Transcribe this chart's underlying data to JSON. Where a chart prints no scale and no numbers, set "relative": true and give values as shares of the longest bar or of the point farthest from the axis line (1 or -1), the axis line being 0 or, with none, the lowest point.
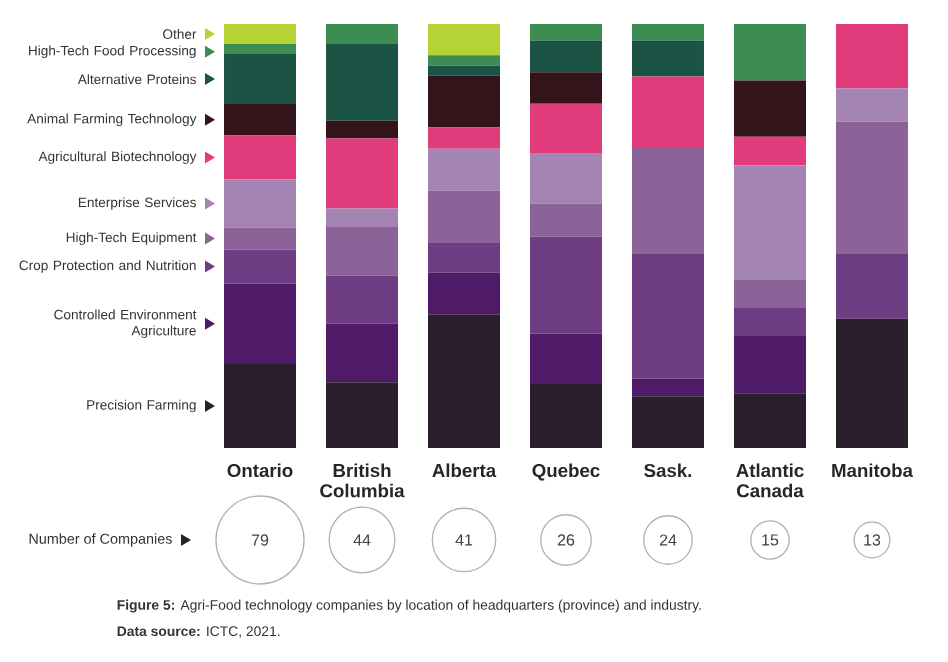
{
  "chart_data": [
    {
      "type": "bar",
      "stacked": true,
      "relative": true,
      "legend": "left",
      "categories": [
        "Ontario",
        "British Columbia",
        "Alberta",
        "Quebec",
        "Sask.",
        "Atlantic Canada",
        "Manitoba"
      ],
      "series": [
        {
          "name": "Precision Farming",
          "color": "#2b1f2e",
          "values": [
            0.198,
            0.155,
            0.314,
            0.151,
            0.122,
            0.129,
            0.305
          ]
        },
        {
          "name": "Controlled Environment Agriculture",
          "color": "#4f1a68",
          "values": [
            0.19,
            0.138,
            0.1,
            0.119,
            0.042,
            0.135,
            0
          ]
        },
        {
          "name": "Crop Protection and Nutrition",
          "color": "#6e3d83",
          "values": [
            0.08,
            0.113,
            0.071,
            0.228,
            0.295,
            0.066,
            0.154
          ]
        },
        {
          "name": "High-Tech Equipment",
          "color": "#8b6399",
          "values": [
            0.052,
            0.115,
            0.122,
            0.078,
            0.251,
            0.066,
            0.311
          ]
        },
        {
          "name": "Enterprise Services",
          "color": "#a384b2",
          "values": [
            0.113,
            0.044,
            0.099,
            0.118,
            0,
            0.27,
            0.078
          ]
        },
        {
          "name": "Agricultural Biotechnology",
          "color": "#e03c7c",
          "values": [
            0.104,
            0.165,
            0.05,
            0.118,
            0.166,
            0.068,
            0.152
          ]
        },
        {
          "name": "Animal Farming Technology",
          "color": "#33141a",
          "values": [
            0.074,
            0.042,
            0.122,
            0.074,
            0,
            0.133,
            0
          ]
        },
        {
          "name": "Alternative Proteins",
          "color": "#1b5444",
          "values": [
            0.118,
            0.181,
            0.024,
            0.075,
            0.085,
            0,
            0
          ]
        },
        {
          "name": "High-Tech Food Processing",
          "color": "#3d8c52",
          "values": [
            0.024,
            0.047,
            0.024,
            0.039,
            0.039,
            0.133,
            0
          ]
        },
        {
          "name": "Other",
          "color": "#b5d334",
          "values": [
            0.047,
            0,
            0.074,
            0,
            0,
            0,
            0
          ]
        }
      ],
      "annotations": [
        "**Figure 5:** Agri-Food technology companies by location of headquarters (province) and industry.",
        "**Data source:** ICTC, 2021."
      ]
    },
    {
      "type": "other",
      "ylabel": "Number of Companies",
      "categories": [
        null,
        null,
        null,
        null,
        null,
        null,
        null
      ],
      "values": [
        79,
        44,
        41,
        26,
        24,
        15,
        13
      ],
      "data_labels": true
    }
  ]
}
